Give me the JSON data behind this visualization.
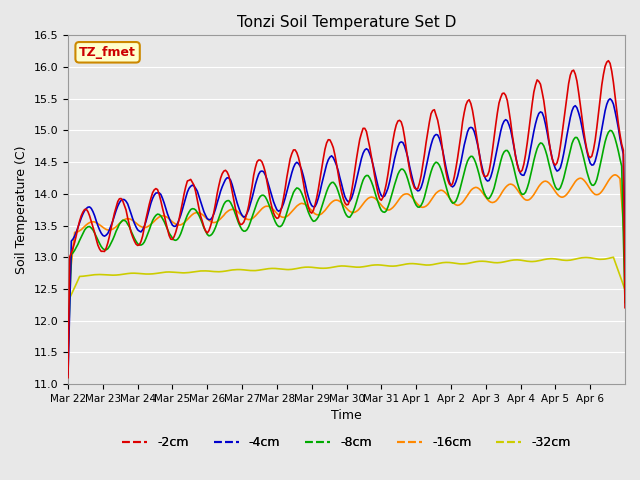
{
  "title": "Tonzi Soil Temperature Set D",
  "xlabel": "Time",
  "ylabel": "Soil Temperature (C)",
  "ylim": [
    11.0,
    16.5
  ],
  "yticks": [
    11.0,
    11.5,
    12.0,
    12.5,
    13.0,
    13.5,
    14.0,
    14.5,
    15.0,
    15.5,
    16.0,
    16.5
  ],
  "series_colors": [
    "#dd0000",
    "#0000cc",
    "#00aa00",
    "#ff8800",
    "#cccc00"
  ],
  "series_labels": [
    "-2cm",
    "-4cm",
    "-8cm",
    "-16cm",
    "-32cm"
  ],
  "legend_label": "TZ_fmet",
  "legend_bg": "#ffffcc",
  "legend_edge": "#cc8800",
  "legend_text_color": "#cc0000",
  "bg_color": "#e8e8e8",
  "grid_color": "#ffffff",
  "x_dates": [
    "Mar 22",
    "Mar 23",
    "Mar 24",
    "Mar 25",
    "Mar 26",
    "Mar 27",
    "Mar 28",
    "Mar 29",
    "Mar 30",
    "Mar 31",
    "Apr 1",
    "Apr 2",
    "Apr 3",
    "Apr 4",
    "Apr 5",
    "Apr 6"
  ],
  "n_points": 337
}
